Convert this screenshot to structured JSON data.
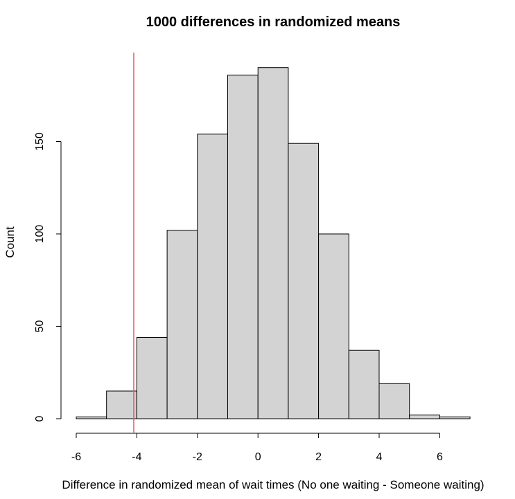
{
  "chart_data": {
    "type": "bar",
    "title": "1000 differences in randomized means",
    "xlabel": "Difference in randomized mean of wait times (No one waiting - Someone waiting)",
    "ylabel": "Count",
    "bins": [
      {
        "x0": -6,
        "x1": -5,
        "count": 1
      },
      {
        "x0": -5,
        "x1": -4,
        "count": 15
      },
      {
        "x0": -4,
        "x1": -3,
        "count": 44
      },
      {
        "x0": -3,
        "x1": -2,
        "count": 102
      },
      {
        "x0": -2,
        "x1": -1,
        "count": 154
      },
      {
        "x0": -1,
        "x1": 0,
        "count": 186
      },
      {
        "x0": 0,
        "x1": 1,
        "count": 190
      },
      {
        "x0": 1,
        "x1": 2,
        "count": 149
      },
      {
        "x0": 2,
        "x1": 3,
        "count": 100
      },
      {
        "x0": 3,
        "x1": 4,
        "count": 37
      },
      {
        "x0": 4,
        "x1": 5,
        "count": 19
      },
      {
        "x0": 5,
        "x1": 6,
        "count": 2
      },
      {
        "x0": 6,
        "x1": 7,
        "count": 1
      }
    ],
    "xlim": [
      -6,
      7
    ],
    "ylim": [
      0,
      190
    ],
    "x_ticks": [
      -6,
      -4,
      -2,
      0,
      2,
      4,
      6
    ],
    "y_ticks": [
      0,
      50,
      100,
      150
    ],
    "reference_line": {
      "x": -4.1,
      "color": "#e05b5b"
    },
    "bar_fill": "#d3d3d3",
    "bar_stroke": "#000000",
    "grid": false
  }
}
